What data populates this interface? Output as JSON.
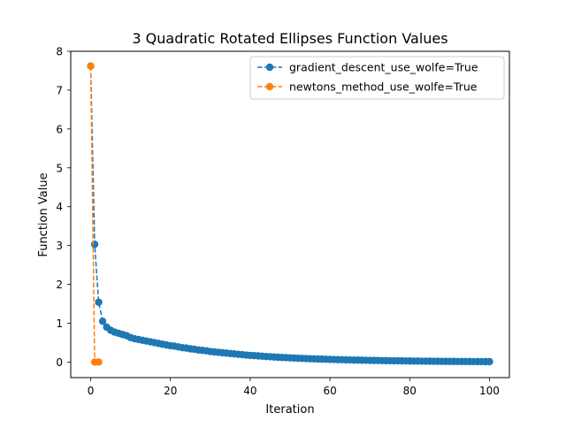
{
  "chart_data": {
    "type": "line",
    "title": "3 Quadratic Rotated Ellipses Function Values",
    "xlabel": "Iteration",
    "ylabel": "Function Value",
    "xlim": [
      -5,
      105
    ],
    "ylim": [
      -0.4,
      8
    ],
    "xticks": [
      0,
      20,
      40,
      60,
      80,
      100
    ],
    "yticks": [
      0,
      1,
      2,
      3,
      4,
      5,
      6,
      7,
      8
    ],
    "grid": false,
    "legend_position": "top-right",
    "series": [
      {
        "name": "gradient_descent_use_wolfe=True",
        "color": "#1f77b4",
        "x": [
          0,
          1,
          2,
          3,
          4,
          5,
          6,
          7,
          8,
          9,
          10,
          11,
          12,
          13,
          14,
          15,
          16,
          17,
          18,
          19,
          20,
          21,
          22,
          23,
          24,
          25,
          26,
          27,
          28,
          29,
          30,
          31,
          32,
          33,
          34,
          35,
          36,
          37,
          38,
          39,
          40,
          41,
          42,
          43,
          44,
          45,
          46,
          47,
          48,
          49,
          50,
          51,
          52,
          53,
          54,
          55,
          56,
          57,
          58,
          59,
          60,
          61,
          62,
          63,
          64,
          65,
          66,
          67,
          68,
          69,
          70,
          71,
          72,
          73,
          74,
          75,
          76,
          77,
          78,
          79,
          80,
          81,
          82,
          83,
          84,
          85,
          86,
          87,
          88,
          89,
          90,
          91,
          92,
          93,
          94,
          95,
          96,
          97,
          98,
          99,
          100
        ],
        "values": [
          7.62,
          3.03,
          1.54,
          1.05,
          0.9,
          0.82,
          0.77,
          0.74,
          0.71,
          0.68,
          0.63,
          0.6,
          0.58,
          0.56,
          0.54,
          0.52,
          0.5,
          0.48,
          0.46,
          0.44,
          0.42,
          0.41,
          0.39,
          0.37,
          0.36,
          0.34,
          0.33,
          0.31,
          0.3,
          0.29,
          0.27,
          0.26,
          0.25,
          0.24,
          0.23,
          0.22,
          0.21,
          0.2,
          0.19,
          0.18,
          0.17,
          0.165,
          0.158,
          0.15,
          0.143,
          0.137,
          0.13,
          0.124,
          0.118,
          0.113,
          0.108,
          0.103,
          0.098,
          0.094,
          0.09,
          0.086,
          0.082,
          0.078,
          0.075,
          0.071,
          0.068,
          0.065,
          0.062,
          0.059,
          0.057,
          0.054,
          0.052,
          0.05,
          0.047,
          0.045,
          0.043,
          0.041,
          0.039,
          0.037,
          0.036,
          0.034,
          0.032,
          0.031,
          0.03,
          0.028,
          0.027,
          0.026,
          0.025,
          0.023,
          0.022,
          0.021,
          0.02,
          0.019,
          0.018,
          0.017,
          0.016,
          0.016,
          0.015,
          0.014,
          0.013,
          0.013,
          0.012,
          0.011,
          0.011,
          0.01,
          0.01
        ]
      },
      {
        "name": "newtons_method_use_wolfe=True",
        "color": "#ff7f0e",
        "x": [
          0,
          1,
          2
        ],
        "values": [
          7.62,
          0.0,
          0.0
        ]
      }
    ]
  }
}
